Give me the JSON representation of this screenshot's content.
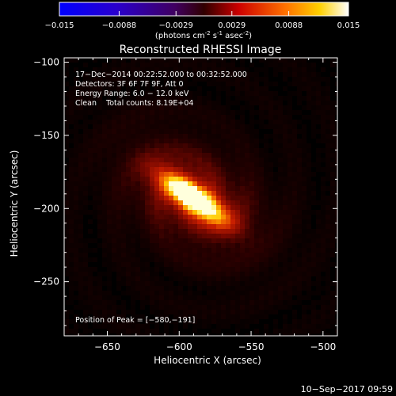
{
  "colorbar": {
    "min": -0.015,
    "max": 0.015,
    "tick_labels": [
      "-0.015",
      "-0.0088",
      "-0.0029",
      "0.0029",
      "0.0088",
      "0.015"
    ],
    "units_label": "(photons cm",
    "units_exp1": "-2",
    "units_mid": " s",
    "units_exp2": "-1",
    "units_mid2": " asec",
    "units_end": ")"
  },
  "chart_data": {
    "type": "heatmap",
    "title": "Reconstructed RHESSI Image",
    "xlabel": "Heliocentric X (arcsec)",
    "ylabel": "Heliocentric Y (arcsec)",
    "xlim": [
      -680,
      -490
    ],
    "ylim": [
      -287,
      -97
    ],
    "x_ticks": [
      -650,
      -600,
      -550,
      -500
    ],
    "y_ticks": [
      -100,
      -150,
      -200,
      -250
    ],
    "x_tick_labels": [
      "−650",
      "−600",
      "−550",
      "−500"
    ],
    "y_tick_labels": [
      "−100",
      "−150",
      "−200",
      "−250"
    ],
    "peak": {
      "x": -580,
      "y": -191
    },
    "source": {
      "center_x": -590,
      "center_y": -193,
      "angle_deg": 35
    },
    "annotations": {
      "line1": "17−Dec−2014 00:22:52.000 to 00:32:52.000",
      "line2": "Detectors: 3F 6F 7F 9F, Att 0",
      "line3": "Energy Range: 6.0 − 12.0 keV",
      "line4": "Clean    Total counts: 8.19E+04",
      "peak_label": "Position of Peak = [−580,−191]"
    }
  },
  "footer": {
    "date": "10−Sep−2017 09:59"
  }
}
